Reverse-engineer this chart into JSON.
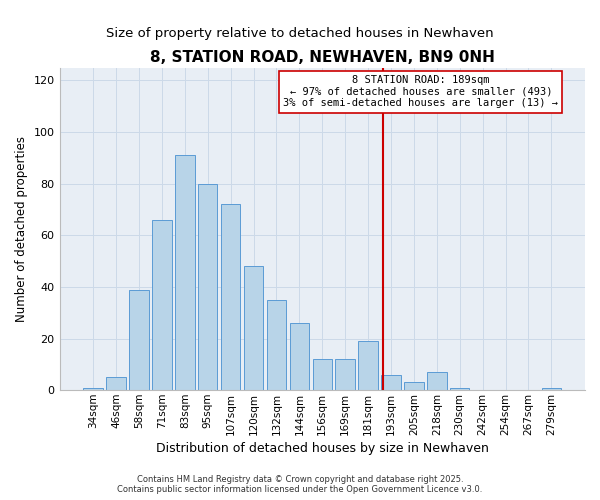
{
  "title": "8, STATION ROAD, NEWHAVEN, BN9 0NH",
  "subtitle": "Size of property relative to detached houses in Newhaven",
  "xlabel": "Distribution of detached houses by size in Newhaven",
  "ylabel": "Number of detached properties",
  "bar_labels": [
    "34sqm",
    "46sqm",
    "58sqm",
    "71sqm",
    "83sqm",
    "95sqm",
    "107sqm",
    "120sqm",
    "132sqm",
    "144sqm",
    "156sqm",
    "169sqm",
    "181sqm",
    "193sqm",
    "205sqm",
    "218sqm",
    "230sqm",
    "242sqm",
    "254sqm",
    "267sqm",
    "279sqm"
  ],
  "bar_heights": [
    1,
    5,
    39,
    66,
    91,
    80,
    72,
    48,
    35,
    26,
    12,
    12,
    19,
    6,
    3,
    7,
    1,
    0,
    0,
    0,
    1
  ],
  "bar_color": "#b8d4e8",
  "bar_edge_color": "#5b9bd5",
  "ylim": [
    0,
    125
  ],
  "yticks": [
    0,
    20,
    40,
    60,
    80,
    100,
    120
  ],
  "vline_color": "#cc0000",
  "vline_index": 12.667,
  "annotation_title": "8 STATION ROAD: 189sqm",
  "annotation_line1": "← 97% of detached houses are smaller (493)",
  "annotation_line2": "3% of semi-detached houses are larger (13) →",
  "annotation_box_color": "#cc0000",
  "grid_color": "#ccd9e8",
  "background_color": "#e8eef5",
  "footer1": "Contains HM Land Registry data © Crown copyright and database right 2025.",
  "footer2": "Contains public sector information licensed under the Open Government Licence v3.0.",
  "title_fontsize": 11,
  "subtitle_fontsize": 9.5,
  "xlabel_fontsize": 9,
  "ylabel_fontsize": 8.5,
  "tick_fontsize": 7.5,
  "annot_fontsize": 7.5,
  "footer_fontsize": 6
}
